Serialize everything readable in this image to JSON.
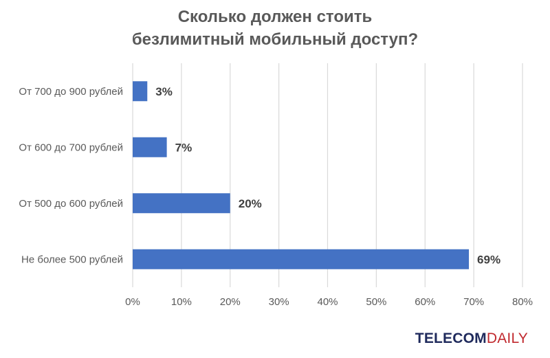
{
  "chart_data": {
    "type": "bar",
    "orientation": "horizontal",
    "title_lines": [
      "Сколько должен стоить",
      "безлимитный мобильный доступ?"
    ],
    "categories": [
      "От 700 до 900 рублей",
      "От 600 до 700 рублей",
      "От 500 до 600 рублей",
      "Не более 500 рублей"
    ],
    "values": [
      3,
      7,
      20,
      69
    ],
    "data_labels": [
      "3%",
      "7%",
      "20%",
      "69%"
    ],
    "xlim": [
      0,
      80
    ],
    "xticks": [
      0,
      10,
      20,
      30,
      40,
      50,
      60,
      70,
      80
    ],
    "xtick_labels": [
      "0%",
      "10%",
      "20%",
      "30%",
      "40%",
      "50%",
      "60%",
      "70%",
      "80%"
    ],
    "grid": true,
    "bar_color": "#4472c4"
  },
  "brand": {
    "part1": "TELECOM",
    "part2": "DAILY",
    "color1": "#1f2a5c",
    "color2": "#c0282d"
  }
}
